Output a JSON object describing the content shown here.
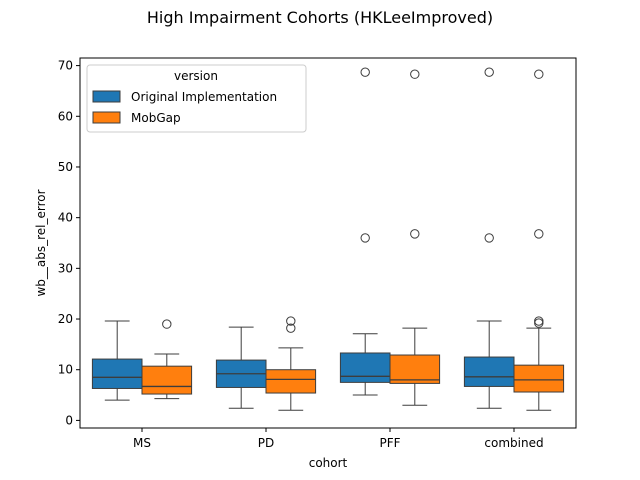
{
  "chart_data": {
    "type": "box",
    "title": "High Impairment Cohorts (HKLeeImproved)",
    "xlabel": "cohort",
    "ylabel": "wb__abs_rel_error",
    "categories": [
      "MS",
      "PD",
      "PFF",
      "combined"
    ],
    "ylim": [
      -1.5,
      71.5
    ],
    "yticks": [
      0,
      10,
      20,
      30,
      40,
      50,
      60,
      70
    ],
    "grid": false,
    "legend": {
      "title": "version",
      "placement": "top-left",
      "entries": [
        "Original Implementation",
        "MobGap"
      ]
    },
    "series": [
      {
        "name": "Original Implementation",
        "color": "#1f77b4",
        "boxes": [
          {
            "whislo": 4.0,
            "q1": 6.3,
            "med": 8.5,
            "q3": 12.1,
            "whishi": 19.6,
            "fliers": []
          },
          {
            "whislo": 2.4,
            "q1": 6.5,
            "med": 9.2,
            "q3": 11.9,
            "whishi": 18.4,
            "fliers": []
          },
          {
            "whislo": 5.0,
            "q1": 7.5,
            "med": 8.7,
            "q3": 13.3,
            "whishi": 17.1,
            "fliers": [
              36.0,
              68.7
            ]
          },
          {
            "whislo": 2.4,
            "q1": 6.7,
            "med": 8.6,
            "q3": 12.5,
            "whishi": 19.6,
            "fliers": [
              36.0,
              68.7
            ]
          }
        ]
      },
      {
        "name": "MobGap",
        "color": "#ff7f0e",
        "boxes": [
          {
            "whislo": 4.3,
            "q1": 5.2,
            "med": 6.7,
            "q3": 10.7,
            "whishi": 13.1,
            "fliers": [
              19.0
            ]
          },
          {
            "whislo": 2.0,
            "q1": 5.4,
            "med": 8.1,
            "q3": 10.0,
            "whishi": 14.3,
            "fliers": [
              18.2,
              19.6
            ]
          },
          {
            "whislo": 3.0,
            "q1": 7.3,
            "med": 8.0,
            "q3": 12.9,
            "whishi": 18.2,
            "fliers": [
              36.8,
              68.3
            ]
          },
          {
            "whislo": 2.0,
            "q1": 5.6,
            "med": 8.0,
            "q3": 10.9,
            "whishi": 18.2,
            "fliers": [
              19.2,
              19.6,
              36.8,
              68.3
            ]
          }
        ]
      }
    ]
  }
}
